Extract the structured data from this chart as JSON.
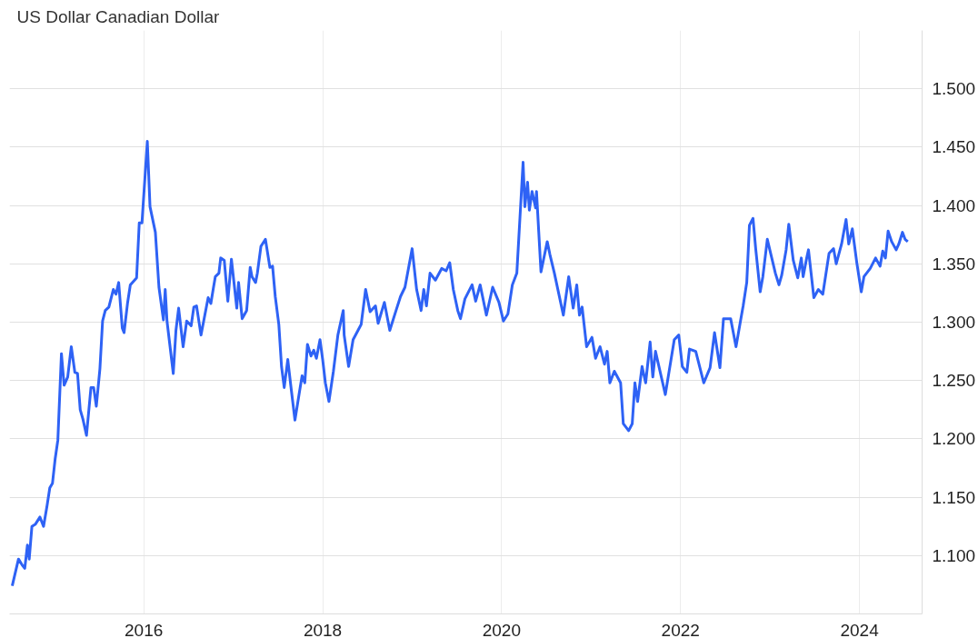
{
  "chart_data": {
    "type": "line",
    "title": "US Dollar Canadian Dollar",
    "xlim": [
      2014.5,
      2024.7
    ],
    "xticks": [
      2016,
      2018,
      2020,
      2022,
      2024
    ],
    "ylim": [
      1.05,
      1.55
    ],
    "yticks": [
      {
        "value": 1.1,
        "label": "1.100"
      },
      {
        "value": 1.15,
        "label": "1.150"
      },
      {
        "value": 1.2,
        "label": "1.200"
      },
      {
        "value": 1.25,
        "label": "1.250"
      },
      {
        "value": 1.3,
        "label": "1.300"
      },
      {
        "value": 1.35,
        "label": "1.350"
      },
      {
        "value": 1.4,
        "label": "1.400"
      },
      {
        "value": 1.45,
        "label": "1.450"
      },
      {
        "value": 1.5,
        "label": "1.500"
      }
    ],
    "grid": true,
    "marker": "none",
    "line_style": "solid",
    "series": [
      {
        "color": "#2e62f5",
        "x": [
          2014.53,
          2014.6,
          2014.64,
          2014.67,
          2014.7,
          2014.72,
          2014.75,
          2014.79,
          2014.84,
          2014.88,
          2014.92,
          2014.95,
          2014.98,
          2015.01,
          2015.04,
          2015.08,
          2015.11,
          2015.15,
          2015.19,
          2015.23,
          2015.26,
          2015.29,
          2015.32,
          2015.36,
          2015.41,
          2015.44,
          2015.47,
          2015.51,
          2015.54,
          2015.57,
          2015.61,
          2015.66,
          2015.69,
          2015.72,
          2015.76,
          2015.78,
          2015.82,
          2015.85,
          2015.92,
          2015.95,
          2015.98,
          2016.04,
          2016.07,
          2016.13,
          2016.17,
          2016.22,
          2016.24,
          2016.26,
          2016.33,
          2016.36,
          2016.39,
          2016.44,
          2016.48,
          2016.53,
          2016.56,
          2016.59,
          2016.64,
          2016.67,
          2016.72,
          2016.75,
          2016.78,
          2016.8,
          2016.84,
          2016.86,
          2016.9,
          2016.94,
          2016.98,
          2017.04,
          2017.06,
          2017.1,
          2017.15,
          2017.19,
          2017.21,
          2017.25,
          2017.27,
          2017.31,
          2017.36,
          2017.41,
          2017.44,
          2017.47,
          2017.51,
          2017.54,
          2017.57,
          2017.61,
          2017.64,
          2017.69,
          2017.74,
          2017.77,
          2017.8,
          2017.83,
          2017.87,
          2017.9,
          2017.93,
          2017.97,
          2018.0,
          2018.03,
          2018.07,
          2018.12,
          2018.17,
          2018.23,
          2018.24,
          2018.29,
          2018.34,
          2018.43,
          2018.48,
          2018.53,
          2018.59,
          2018.62,
          2018.69,
          2018.75,
          2018.82,
          2018.87,
          2018.92,
          2019.0,
          2019.05,
          2019.1,
          2019.13,
          2019.16,
          2019.2,
          2019.26,
          2019.33,
          2019.38,
          2019.42,
          2019.46,
          2019.51,
          2019.54,
          2019.59,
          2019.67,
          2019.71,
          2019.76,
          2019.83,
          2019.9,
          2019.97,
          2020.02,
          2020.07,
          2020.12,
          2020.17,
          2020.24,
          2020.26,
          2020.29,
          2020.31,
          2020.34,
          2020.38,
          2020.39,
          2020.44,
          2020.51,
          2020.54,
          2020.59,
          2020.69,
          2020.75,
          2020.8,
          2020.84,
          2020.87,
          2020.9,
          2020.95,
          2021.01,
          2021.05,
          2021.1,
          2021.15,
          2021.18,
          2021.21,
          2021.26,
          2021.33,
          2021.36,
          2021.42,
          2021.46,
          2021.49,
          2021.52,
          2021.57,
          2021.61,
          2021.66,
          2021.69,
          2021.72,
          2021.83,
          2021.93,
          2021.98,
          2022.02,
          2022.07,
          2022.1,
          2022.17,
          2022.26,
          2022.33,
          2022.38,
          2022.44,
          2022.48,
          2022.56,
          2022.62,
          2022.67,
          2022.7,
          2022.74,
          2022.77,
          2022.81,
          2022.84,
          2022.89,
          2022.92,
          2022.97,
          2023.06,
          2023.1,
          2023.13,
          2023.18,
          2023.21,
          2023.26,
          2023.31,
          2023.35,
          2023.37,
          2023.41,
          2023.43,
          2023.49,
          2023.54,
          2023.59,
          2023.66,
          2023.71,
          2023.74,
          2023.8,
          2023.85,
          2023.88,
          2023.92,
          2023.97,
          2024.02,
          2024.05,
          2024.12,
          2024.18,
          2024.23,
          2024.26,
          2024.29,
          2024.32,
          2024.36,
          2024.41,
          2024.44,
          2024.48,
          2024.51,
          2024.54
        ],
        "values": [
          1.074,
          1.097,
          1.092,
          1.089,
          1.109,
          1.097,
          1.125,
          1.127,
          1.133,
          1.125,
          1.143,
          1.158,
          1.162,
          1.183,
          1.199,
          1.273,
          1.246,
          1.253,
          1.279,
          1.257,
          1.256,
          1.225,
          1.217,
          1.203,
          1.244,
          1.244,
          1.228,
          1.26,
          1.301,
          1.31,
          1.313,
          1.328,
          1.324,
          1.334,
          1.295,
          1.291,
          1.317,
          1.332,
          1.338,
          1.385,
          1.385,
          1.455,
          1.399,
          1.377,
          1.33,
          1.302,
          1.328,
          1.301,
          1.256,
          1.293,
          1.312,
          1.279,
          1.301,
          1.297,
          1.313,
          1.314,
          1.289,
          1.301,
          1.321,
          1.316,
          1.33,
          1.339,
          1.342,
          1.355,
          1.353,
          1.318,
          1.354,
          1.312,
          1.334,
          1.303,
          1.31,
          1.347,
          1.339,
          1.334,
          1.342,
          1.365,
          1.371,
          1.347,
          1.348,
          1.322,
          1.298,
          1.262,
          1.244,
          1.268,
          1.248,
          1.216,
          1.24,
          1.254,
          1.248,
          1.281,
          1.271,
          1.276,
          1.269,
          1.285,
          1.268,
          1.248,
          1.232,
          1.258,
          1.289,
          1.31,
          1.289,
          1.262,
          1.285,
          1.298,
          1.328,
          1.309,
          1.314,
          1.299,
          1.317,
          1.293,
          1.31,
          1.322,
          1.33,
          1.363,
          1.328,
          1.31,
          1.328,
          1.314,
          1.342,
          1.336,
          1.346,
          1.344,
          1.351,
          1.328,
          1.31,
          1.303,
          1.32,
          1.332,
          1.318,
          1.332,
          1.306,
          1.33,
          1.317,
          1.301,
          1.307,
          1.332,
          1.342,
          1.437,
          1.399,
          1.42,
          1.396,
          1.412,
          1.398,
          1.412,
          1.343,
          1.369,
          1.358,
          1.342,
          1.306,
          1.339,
          1.312,
          1.332,
          1.306,
          1.313,
          1.279,
          1.287,
          1.269,
          1.279,
          1.264,
          1.275,
          1.248,
          1.258,
          1.248,
          1.213,
          1.207,
          1.213,
          1.248,
          1.232,
          1.262,
          1.248,
          1.283,
          1.253,
          1.275,
          1.238,
          1.285,
          1.289,
          1.262,
          1.257,
          1.277,
          1.275,
          1.248,
          1.261,
          1.291,
          1.261,
          1.303,
          1.303,
          1.279,
          1.301,
          1.314,
          1.334,
          1.383,
          1.389,
          1.363,
          1.326,
          1.339,
          1.371,
          1.342,
          1.332,
          1.34,
          1.362,
          1.384,
          1.353,
          1.338,
          1.355,
          1.339,
          1.355,
          1.362,
          1.321,
          1.328,
          1.324,
          1.359,
          1.363,
          1.35,
          1.367,
          1.388,
          1.367,
          1.38,
          1.351,
          1.326,
          1.339,
          1.346,
          1.355,
          1.348,
          1.361,
          1.355,
          1.378,
          1.369,
          1.362,
          1.367,
          1.377,
          1.371,
          1.369
        ]
      }
    ]
  }
}
